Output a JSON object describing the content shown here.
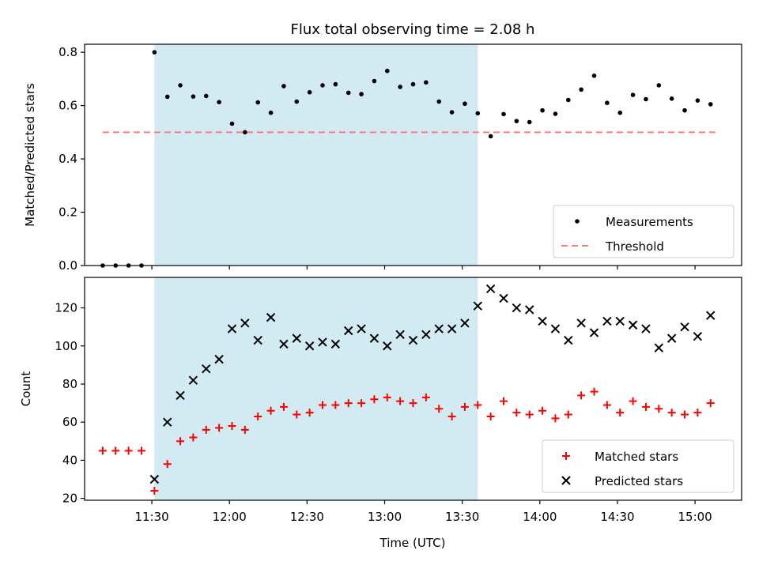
{
  "title": "Flux total observing time = 2.08 h",
  "xlabel": "Time (UTC)",
  "xticks": [
    "11:30",
    "12:00",
    "12:30",
    "13:00",
    "13:30",
    "14:00",
    "14:30",
    "15:00"
  ],
  "colors": {
    "measurements": "#000000",
    "threshold": "#ff7b7b",
    "shade": "#add8e6",
    "matched": "#ff0000",
    "predicted": "#000000"
  },
  "chart_data": [
    {
      "type": "scatter",
      "ylabel": "Matched/Predicted stars",
      "ylim": [
        0,
        0.83
      ],
      "yticks": [
        "0.0",
        "0.2",
        "0.4",
        "0.6",
        "0.8"
      ],
      "shaded_region": [
        "11:31",
        "13:36"
      ],
      "legend": {
        "placement": "lower-right",
        "entries": [
          "Measurements",
          "Threshold"
        ]
      },
      "threshold": {
        "name": "Threshold",
        "y": 0.5,
        "x": [
          "11:11",
          "15:08"
        ]
      },
      "series": [
        {
          "name": "Measurements",
          "x": [
            "11:11",
            "11:16",
            "11:21",
            "11:26",
            "11:31",
            "11:36",
            "11:41",
            "11:46",
            "11:51",
            "11:56",
            "12:01",
            "12:06",
            "12:11",
            "12:16",
            "12:21",
            "12:26",
            "12:31",
            "12:36",
            "12:41",
            "12:46",
            "12:51",
            "12:56",
            "13:01",
            "13:06",
            "13:11",
            "13:16",
            "13:21",
            "13:26",
            "13:31",
            "13:36",
            "13:41",
            "13:46",
            "13:51",
            "13:56",
            "14:01",
            "14:06",
            "14:11",
            "14:16",
            "14:21",
            "14:26",
            "14:31",
            "14:36",
            "14:41",
            "14:46",
            "14:51",
            "14:56",
            "15:01",
            "15:06"
          ],
          "y": [
            0.0,
            0.0,
            0.0,
            0.0,
            0.8,
            0.633,
            0.676,
            0.634,
            0.636,
            0.613,
            0.532,
            0.5,
            0.612,
            0.573,
            0.673,
            0.615,
            0.65,
            0.676,
            0.68,
            0.648,
            0.643,
            0.692,
            0.73,
            0.67,
            0.68,
            0.687,
            0.615,
            0.575,
            0.607,
            0.571,
            0.485,
            0.568,
            0.542,
            0.538,
            0.582,
            0.569,
            0.621,
            0.66,
            0.712,
            0.61,
            0.573,
            0.64,
            0.624,
            0.676,
            0.626,
            0.582,
            0.619,
            0.605
          ]
        }
      ]
    },
    {
      "type": "scatter",
      "ylabel": "Count",
      "ylim": [
        19,
        136
      ],
      "yticks": [
        "20",
        "40",
        "60",
        "80",
        "100",
        "120"
      ],
      "shaded_region": [
        "11:31",
        "13:36"
      ],
      "legend": {
        "placement": "lower-right",
        "entries": [
          "Matched stars",
          "Predicted stars"
        ]
      },
      "series": [
        {
          "name": "Matched stars",
          "x": [
            "11:11",
            "11:16",
            "11:21",
            "11:26",
            "11:31",
            "11:36",
            "11:41",
            "11:46",
            "11:51",
            "11:56",
            "12:01",
            "12:06",
            "12:11",
            "12:16",
            "12:21",
            "12:26",
            "12:31",
            "12:36",
            "12:41",
            "12:46",
            "12:51",
            "12:56",
            "13:01",
            "13:06",
            "13:11",
            "13:16",
            "13:21",
            "13:26",
            "13:31",
            "13:36",
            "13:41",
            "13:46",
            "13:51",
            "13:56",
            "14:01",
            "14:06",
            "14:11",
            "14:16",
            "14:21",
            "14:26",
            "14:31",
            "14:36",
            "14:41",
            "14:46",
            "14:51",
            "14:56",
            "15:01",
            "15:06"
          ],
          "y": [
            45,
            45,
            45,
            45,
            24,
            38,
            50,
            52,
            56,
            57,
            58,
            56,
            63,
            66,
            68,
            64,
            65,
            69,
            69,
            70,
            70,
            72,
            73,
            71,
            70,
            73,
            67,
            63,
            68,
            69,
            63,
            71,
            65,
            64,
            66,
            62,
            64,
            74,
            76,
            69,
            65,
            71,
            68,
            67,
            65,
            64,
            65,
            70
          ]
        },
        {
          "name": "Predicted stars",
          "x": [
            "11:31",
            "11:36",
            "11:41",
            "11:46",
            "11:51",
            "11:56",
            "12:01",
            "12:06",
            "12:11",
            "12:16",
            "12:21",
            "12:26",
            "12:31",
            "12:36",
            "12:41",
            "12:46",
            "12:51",
            "12:56",
            "13:01",
            "13:06",
            "13:11",
            "13:16",
            "13:21",
            "13:26",
            "13:31",
            "13:36",
            "13:41",
            "13:46",
            "13:51",
            "13:56",
            "14:01",
            "14:06",
            "14:11",
            "14:16",
            "14:21",
            "14:26",
            "14:31",
            "14:36",
            "14:41",
            "14:46",
            "14:51",
            "14:56",
            "15:01",
            "15:06"
          ],
          "y": [
            30,
            60,
            74,
            82,
            88,
            93,
            109,
            112,
            103,
            115,
            101,
            104,
            100,
            102,
            101,
            108,
            109,
            104,
            100,
            106,
            103,
            106,
            109,
            109,
            112,
            121,
            130,
            125,
            120,
            119,
            113,
            109,
            103,
            112,
            107,
            113,
            113,
            111,
            109,
            99,
            104,
            110,
            105,
            116
          ]
        }
      ]
    }
  ]
}
